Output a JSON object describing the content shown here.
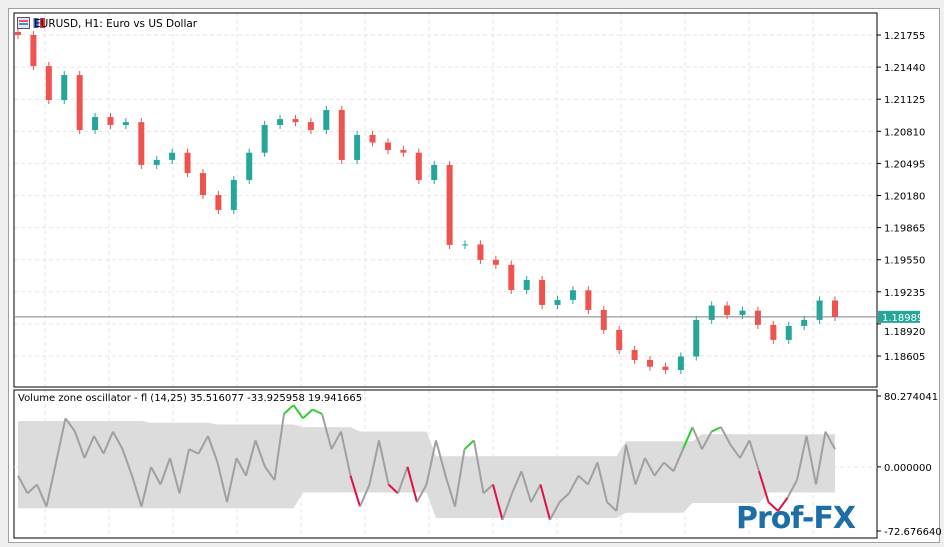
{
  "window": {
    "title": "EURUSD, H1:  Euro vs US Dollar"
  },
  "colors": {
    "bull": "#26a69a",
    "bear": "#ef5350",
    "grid": "#e6e6e6",
    "band": "#dcdcdc",
    "osc_line": "#a0a0a0",
    "osc_up": "#33cc33",
    "osc_down": "#dd1144",
    "price_line": "#808080",
    "price_tag": "#26a69a"
  },
  "chart_data": [
    {
      "type": "candlestick",
      "symbol": "EURUSD",
      "timeframe": "H1",
      "y_ticks": [
        "1.21755",
        "1.21440",
        "1.21125",
        "1.20810",
        "1.20495",
        "1.20180",
        "1.19865",
        "1.19550",
        "1.19235",
        "1.18920",
        "1.18605"
      ],
      "ylim": [
        1.18605,
        1.21755
      ],
      "current_price": "1.18989",
      "close": [
        1.21755,
        1.2145,
        1.21117,
        1.21362,
        1.20823,
        1.2095,
        1.20872,
        1.209,
        1.2048,
        1.20529,
        1.206,
        1.204,
        1.20185,
        1.20038,
        1.20332,
        1.206,
        1.20872,
        1.2093,
        1.209,
        1.20823,
        1.21019,
        1.20529,
        1.20774,
        1.207,
        1.20627,
        1.206,
        1.20332,
        1.2048,
        1.19695,
        1.197,
        1.19548,
        1.195,
        1.19253,
        1.19351,
        1.19106,
        1.19155,
        1.1925,
        1.19057,
        1.18861,
        1.18664,
        1.18566,
        1.185,
        1.18468,
        1.186,
        1.18959,
        1.191,
        1.19008,
        1.1905,
        1.1891,
        1.18763,
        1.189,
        1.18959,
        1.1915,
        1.18989
      ]
    },
    {
      "type": "line",
      "title": "Volume zone oscillator - fl (14,25) 35.516077 -33.925958 19.941665",
      "y_ticks": [
        "80.274041",
        "0.000000",
        "-72.676640"
      ],
      "ylim": [
        -72.67664,
        80.274041
      ],
      "values": [
        -10,
        -30,
        -20,
        -45,
        5,
        55,
        40,
        10,
        35,
        15,
        40,
        20,
        -10,
        -45,
        0,
        -20,
        10,
        -30,
        20,
        15,
        35,
        5,
        -40,
        10,
        -10,
        30,
        0,
        -15,
        60,
        70,
        55,
        65,
        60,
        20,
        40,
        -10,
        -45,
        -20,
        30,
        -20,
        -30,
        0,
        -40,
        -20,
        30,
        -10,
        -45,
        20,
        30,
        -30,
        -20,
        -60,
        -30,
        -5,
        -40,
        -20,
        -60,
        -40,
        -30,
        -10,
        -20,
        5,
        -40,
        -50,
        25,
        -20,
        10,
        -10,
        5,
        -5,
        20,
        45,
        20,
        40,
        45,
        25,
        10,
        30,
        -5,
        -40,
        -50,
        -35,
        -15,
        35,
        -20,
        40,
        20
      ],
      "band_upper": [
        52,
        52,
        52,
        52,
        52,
        52,
        52,
        52,
        52,
        52,
        52,
        52,
        52,
        52,
        50,
        50,
        50,
        50,
        50,
        50,
        50,
        48,
        48,
        48,
        48,
        48,
        48,
        48,
        48,
        48,
        45,
        45,
        45,
        45,
        45,
        45,
        40,
        40,
        40,
        40,
        40,
        40,
        40,
        40,
        12,
        12,
        12,
        12,
        12,
        12,
        12,
        12,
        12,
        12,
        12,
        12,
        12,
        12,
        12,
        12,
        12,
        12,
        12,
        12,
        29,
        29,
        29,
        29,
        29,
        29,
        29,
        29,
        37,
        37,
        37,
        37,
        37,
        37,
        37,
        37,
        37,
        37,
        37,
        37,
        37,
        37,
        37
      ],
      "band_lower": [
        -47,
        -47,
        -47,
        -47,
        -47,
        -47,
        -47,
        -47,
        -47,
        -47,
        -47,
        -47,
        -47,
        -47,
        -47,
        -47,
        -47,
        -47,
        -47,
        -47,
        -47,
        -47,
        -47,
        -47,
        -47,
        -47,
        -47,
        -47,
        -47,
        -47,
        -29,
        -29,
        -29,
        -29,
        -29,
        -29,
        -29,
        -29,
        -29,
        -29,
        -29,
        -29,
        -29,
        -29,
        -58,
        -58,
        -58,
        -58,
        -58,
        -58,
        -58,
        -58,
        -58,
        -58,
        -58,
        -58,
        -58,
        -58,
        -58,
        -58,
        -58,
        -58,
        -58,
        -58,
        -52,
        -52,
        -52,
        -52,
        -52,
        -52,
        -52,
        -41,
        -41,
        -41,
        -41,
        -41,
        -41,
        -41,
        -41,
        -29,
        -29,
        -29,
        -29,
        -29,
        -29,
        -29,
        -29
      ]
    }
  ],
  "brand": {
    "logo_text": "Prof-FX"
  }
}
